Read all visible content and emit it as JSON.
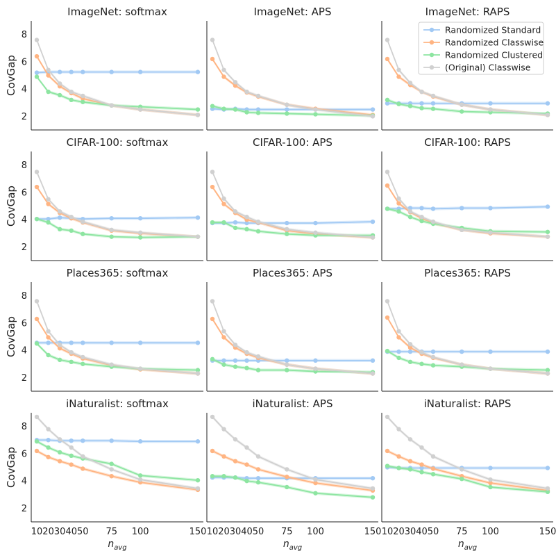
{
  "colors": {
    "Randomized Standard": "#a1c9f4",
    "Randomized Classwise": "#ffb482",
    "Randomized Clustered": "#8de5a1",
    "(Original) Classwise": "#d0d0d0"
  },
  "chart_data": {
    "type": "line",
    "x": [
      10,
      20,
      30,
      40,
      50,
      75,
      100,
      150
    ],
    "x_tick_labels": [
      "10",
      "20",
      "30",
      "40",
      "50",
      "75",
      "100",
      "150"
    ],
    "ylim": [
      1,
      9
    ],
    "y_ticks": [
      2,
      4,
      6,
      8
    ],
    "ylabel": "CovGap",
    "xlabel": "n",
    "xlabel_sub": "avg",
    "legend": [
      "Randomized Standard",
      "Randomized Classwise",
      "Randomized Clustered",
      "(Original) Classwise"
    ],
    "legend_location": "upper right of ImageNet: RAPS panel",
    "panels": [
      {
        "title": "ImageNet: softmax",
        "series": [
          {
            "name": "Randomized Standard",
            "values": [
              5.2,
              5.25,
              5.25,
              5.25,
              5.25,
              5.25,
              5.25,
              5.25
            ]
          },
          {
            "name": "Randomized Classwise",
            "values": [
              6.4,
              5.0,
              4.2,
              3.7,
              3.3,
              2.8,
              2.5,
              2.1
            ]
          },
          {
            "name": "Randomized Clustered",
            "values": [
              4.9,
              3.8,
              3.55,
              3.2,
              3.05,
              2.8,
              2.7,
              2.5
            ]
          },
          {
            "name": "(Original) Classwise",
            "values": [
              7.6,
              5.4,
              4.4,
              3.8,
              3.5,
              2.8,
              2.5,
              2.1
            ]
          }
        ]
      },
      {
        "title": "ImageNet: APS",
        "series": [
          {
            "name": "Randomized Standard",
            "values": [
              2.55,
              2.5,
              2.55,
              2.5,
              2.5,
              2.5,
              2.5,
              2.5
            ]
          },
          {
            "name": "Randomized Classwise",
            "values": [
              6.2,
              4.9,
              4.25,
              3.75,
              3.45,
              2.85,
              2.55,
              2.1
            ]
          },
          {
            "name": "Randomized Clustered",
            "values": [
              2.75,
              2.55,
              2.5,
              2.3,
              2.25,
              2.2,
              2.15,
              2.05
            ]
          },
          {
            "name": "(Original) Classwise",
            "values": [
              7.6,
              5.4,
              4.5,
              3.8,
              3.5,
              2.85,
              2.5,
              2.0
            ]
          }
        ]
      },
      {
        "title": "ImageNet: RAPS",
        "series": [
          {
            "name": "Randomized Standard",
            "values": [
              2.95,
              2.95,
              2.95,
              2.95,
              2.95,
              2.95,
              2.95,
              2.95
            ]
          },
          {
            "name": "Randomized Classwise",
            "values": [
              6.2,
              4.9,
              4.3,
              3.8,
              3.45,
              2.85,
              2.5,
              2.1
            ]
          },
          {
            "name": "Randomized Clustered",
            "values": [
              3.2,
              2.9,
              2.75,
              2.6,
              2.55,
              2.35,
              2.3,
              2.2
            ]
          },
          {
            "name": "(Original) Classwise",
            "values": [
              7.6,
              5.4,
              4.45,
              3.8,
              3.5,
              2.85,
              2.5,
              2.1
            ]
          }
        ]
      },
      {
        "title": "CIFAR-100: softmax",
        "series": [
          {
            "name": "Randomized Standard",
            "values": [
              4.05,
              4.05,
              4.15,
              4.1,
              4.05,
              4.1,
              4.1,
              4.15
            ]
          },
          {
            "name": "Randomized Classwise",
            "values": [
              6.4,
              5.15,
              4.5,
              4.1,
              3.8,
              3.2,
              3.0,
              2.75
            ]
          },
          {
            "name": "Randomized Clustered",
            "values": [
              4.05,
              3.8,
              3.3,
              3.2,
              2.95,
              2.75,
              2.7,
              2.75
            ]
          },
          {
            "name": "(Original) Classwise",
            "values": [
              7.5,
              5.5,
              4.6,
              4.2,
              3.85,
              3.25,
              3.05,
              2.75
            ]
          }
        ]
      },
      {
        "title": "CIFAR-100: APS",
        "series": [
          {
            "name": "Randomized Standard",
            "values": [
              3.75,
              3.75,
              3.8,
              3.75,
              3.75,
              3.75,
              3.75,
              3.85
            ]
          },
          {
            "name": "Randomized Classwise",
            "values": [
              6.4,
              5.15,
              4.5,
              4.0,
              3.8,
              3.2,
              2.95,
              2.7
            ]
          },
          {
            "name": "Randomized Clustered",
            "values": [
              3.8,
              3.8,
              3.4,
              3.3,
              3.15,
              2.95,
              2.85,
              2.85
            ]
          },
          {
            "name": "(Original) Classwise",
            "values": [
              7.5,
              5.55,
              4.6,
              4.2,
              3.85,
              3.3,
              3.05,
              2.7
            ]
          }
        ]
      },
      {
        "title": "CIFAR-100: RAPS",
        "series": [
          {
            "name": "Randomized Standard",
            "values": [
              4.8,
              4.8,
              4.85,
              4.85,
              4.8,
              4.85,
              4.85,
              4.95
            ]
          },
          {
            "name": "Randomized Classwise",
            "values": [
              6.5,
              5.2,
              4.55,
              4.1,
              3.75,
              3.25,
              3.0,
              2.75
            ]
          },
          {
            "name": "Randomized Clustered",
            "values": [
              4.8,
              4.6,
              4.2,
              3.9,
              3.7,
              3.4,
              3.15,
              3.1
            ]
          },
          {
            "name": "(Original) Classwise",
            "values": [
              7.5,
              5.55,
              4.6,
              4.2,
              3.85,
              3.25,
              3.05,
              2.75
            ]
          }
        ]
      },
      {
        "title": "Places365: softmax",
        "series": [
          {
            "name": "Randomized Standard",
            "values": [
              4.55,
              4.55,
              4.55,
              4.55,
              4.55,
              4.55,
              4.55,
              4.55
            ]
          },
          {
            "name": "Randomized Classwise",
            "values": [
              6.3,
              4.95,
              4.15,
              3.75,
              3.4,
              2.9,
              2.6,
              2.3
            ]
          },
          {
            "name": "Randomized Clustered",
            "values": [
              4.5,
              3.65,
              3.3,
              3.15,
              3.0,
              2.8,
              2.65,
              2.55
            ]
          },
          {
            "name": "(Original) Classwise",
            "values": [
              7.6,
              5.4,
              4.4,
              3.85,
              3.5,
              2.95,
              2.65,
              2.3
            ]
          }
        ]
      },
      {
        "title": "Places365: APS",
        "series": [
          {
            "name": "Randomized Standard",
            "values": [
              3.25,
              3.25,
              3.25,
              3.25,
              3.25,
              3.25,
              3.25,
              3.25
            ]
          },
          {
            "name": "Randomized Classwise",
            "values": [
              6.3,
              4.95,
              4.2,
              3.75,
              3.45,
              2.95,
              2.65,
              2.3
            ]
          },
          {
            "name": "Randomized Clustered",
            "values": [
              3.35,
              2.95,
              2.8,
              2.7,
              2.55,
              2.55,
              2.45,
              2.4
            ]
          },
          {
            "name": "(Original) Classwise",
            "values": [
              7.6,
              5.4,
              4.4,
              3.85,
              3.55,
              2.95,
              2.65,
              2.3
            ]
          }
        ]
      },
      {
        "title": "Places365: RAPS",
        "series": [
          {
            "name": "Randomized Standard",
            "values": [
              3.9,
              3.9,
              3.9,
              3.9,
              3.9,
              3.9,
              3.9,
              3.9
            ]
          },
          {
            "name": "Randomized Classwise",
            "values": [
              6.4,
              4.95,
              4.2,
              3.75,
              3.45,
              2.95,
              2.65,
              2.3
            ]
          },
          {
            "name": "Randomized Clustered",
            "values": [
              3.95,
              3.45,
              3.15,
              3.0,
              2.9,
              2.8,
              2.65,
              2.55
            ]
          },
          {
            "name": "(Original) Classwise",
            "values": [
              7.6,
              5.4,
              4.45,
              3.85,
              3.5,
              2.95,
              2.65,
              2.3
            ]
          }
        ]
      },
      {
        "title": "iNaturalist: softmax",
        "series": [
          {
            "name": "Randomized Standard",
            "values": [
              7.0,
              7.0,
              6.95,
              6.95,
              6.95,
              6.95,
              6.9,
              6.9
            ]
          },
          {
            "name": "Randomized Classwise",
            "values": [
              6.2,
              5.75,
              5.45,
              5.2,
              4.9,
              4.35,
              3.9,
              3.35
            ]
          },
          {
            "name": "Randomized Clustered",
            "values": [
              6.9,
              6.45,
              6.1,
              5.85,
              5.65,
              5.25,
              4.4,
              4.05
            ]
          },
          {
            "name": "(Original) Classwise",
            "values": [
              8.7,
              7.8,
              7.05,
              6.45,
              5.8,
              4.85,
              4.1,
              3.45
            ]
          }
        ]
      },
      {
        "title": "iNaturalist: APS",
        "series": [
          {
            "name": "Randomized Standard",
            "values": [
              4.25,
              4.25,
              4.25,
              4.2,
              4.2,
              4.2,
              4.2,
              4.2
            ]
          },
          {
            "name": "Randomized Classwise",
            "values": [
              6.2,
              5.8,
              5.45,
              5.2,
              4.85,
              4.3,
              3.85,
              3.3
            ]
          },
          {
            "name": "Randomized Clustered",
            "values": [
              4.35,
              4.35,
              4.25,
              4.0,
              3.9,
              3.55,
              3.1,
              2.8
            ]
          },
          {
            "name": "(Original) Classwise",
            "values": [
              8.7,
              7.8,
              7.05,
              6.45,
              5.8,
              4.85,
              4.1,
              3.45
            ]
          }
        ]
      },
      {
        "title": "iNaturalist: RAPS",
        "series": [
          {
            "name": "Randomized Standard",
            "values": [
              5.0,
              4.95,
              4.95,
              4.95,
              4.95,
              4.95,
              4.95,
              4.95
            ]
          },
          {
            "name": "Randomized Classwise",
            "values": [
              6.2,
              5.8,
              5.45,
              5.2,
              4.9,
              4.35,
              3.85,
              3.3
            ]
          },
          {
            "name": "Randomized Clustered",
            "values": [
              5.1,
              4.95,
              4.85,
              4.65,
              4.5,
              4.15,
              3.55,
              3.2
            ]
          },
          {
            "name": "(Original) Classwise",
            "values": [
              8.7,
              7.8,
              7.05,
              6.45,
              5.8,
              4.85,
              4.1,
              3.45
            ]
          }
        ]
      }
    ]
  }
}
